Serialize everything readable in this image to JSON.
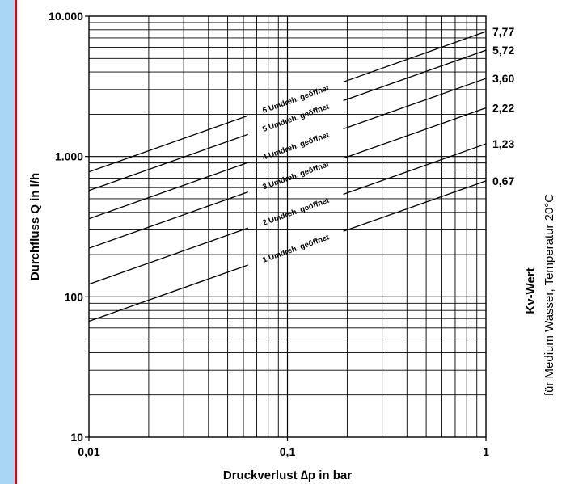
{
  "colors": {
    "side_band": "#a9d6f5",
    "side_rule": "#e2001a",
    "lines": "#000000",
    "background": "#ffffff"
  },
  "chart_data": {
    "type": "line",
    "x_scale": "log",
    "y_scale": "log",
    "xlim": [
      0.01,
      1
    ],
    "ylim": [
      10,
      10000
    ],
    "grid": true,
    "xlabel": "Druckverlust ∆p in bar",
    "ylabel": "Durchfluss Q in l/h",
    "x_ticks": [
      {
        "value": 0.01,
        "label": "0,01"
      },
      {
        "value": 0.1,
        "label": "0,1"
      },
      {
        "value": 1,
        "label": "1"
      }
    ],
    "y_ticks": [
      {
        "value": 10,
        "label": "10"
      },
      {
        "value": 100,
        "label": "100"
      },
      {
        "value": 1000,
        "label": "1.000"
      },
      {
        "value": 10000,
        "label": "10.000"
      }
    ],
    "right_axis": {
      "title": "Kv-Wert",
      "subtitle": "für Medium Wasser, Temperatur 20°C"
    },
    "series": [
      {
        "name": "1 Umdreh. geöffnet",
        "kv": 0.67,
        "kv_label": "0,67",
        "x": [
          0.01,
          1
        ],
        "y": [
          67,
          670
        ]
      },
      {
        "name": "2 Umdreh. geöffnet",
        "kv": 1.23,
        "kv_label": "1,23",
        "x": [
          0.01,
          1
        ],
        "y": [
          123,
          1230
        ]
      },
      {
        "name": "3 Umdreh. geöffnet",
        "kv": 2.22,
        "kv_label": "2,22",
        "x": [
          0.01,
          1
        ],
        "y": [
          222,
          2220
        ]
      },
      {
        "name": "4 Umdreh. geöffnet",
        "kv": 3.6,
        "kv_label": "3,60",
        "x": [
          0.01,
          1
        ],
        "y": [
          360,
          3600
        ]
      },
      {
        "name": "5 Umdreh. geöffnet",
        "kv": 5.72,
        "kv_label": "5,72",
        "x": [
          0.01,
          1
        ],
        "y": [
          572,
          5720
        ]
      },
      {
        "name": "6 Umdreh. geöffnet",
        "kv": 7.77,
        "kv_label": "7,77",
        "x": [
          0.01,
          1
        ],
        "y": [
          777,
          7770
        ]
      }
    ]
  }
}
